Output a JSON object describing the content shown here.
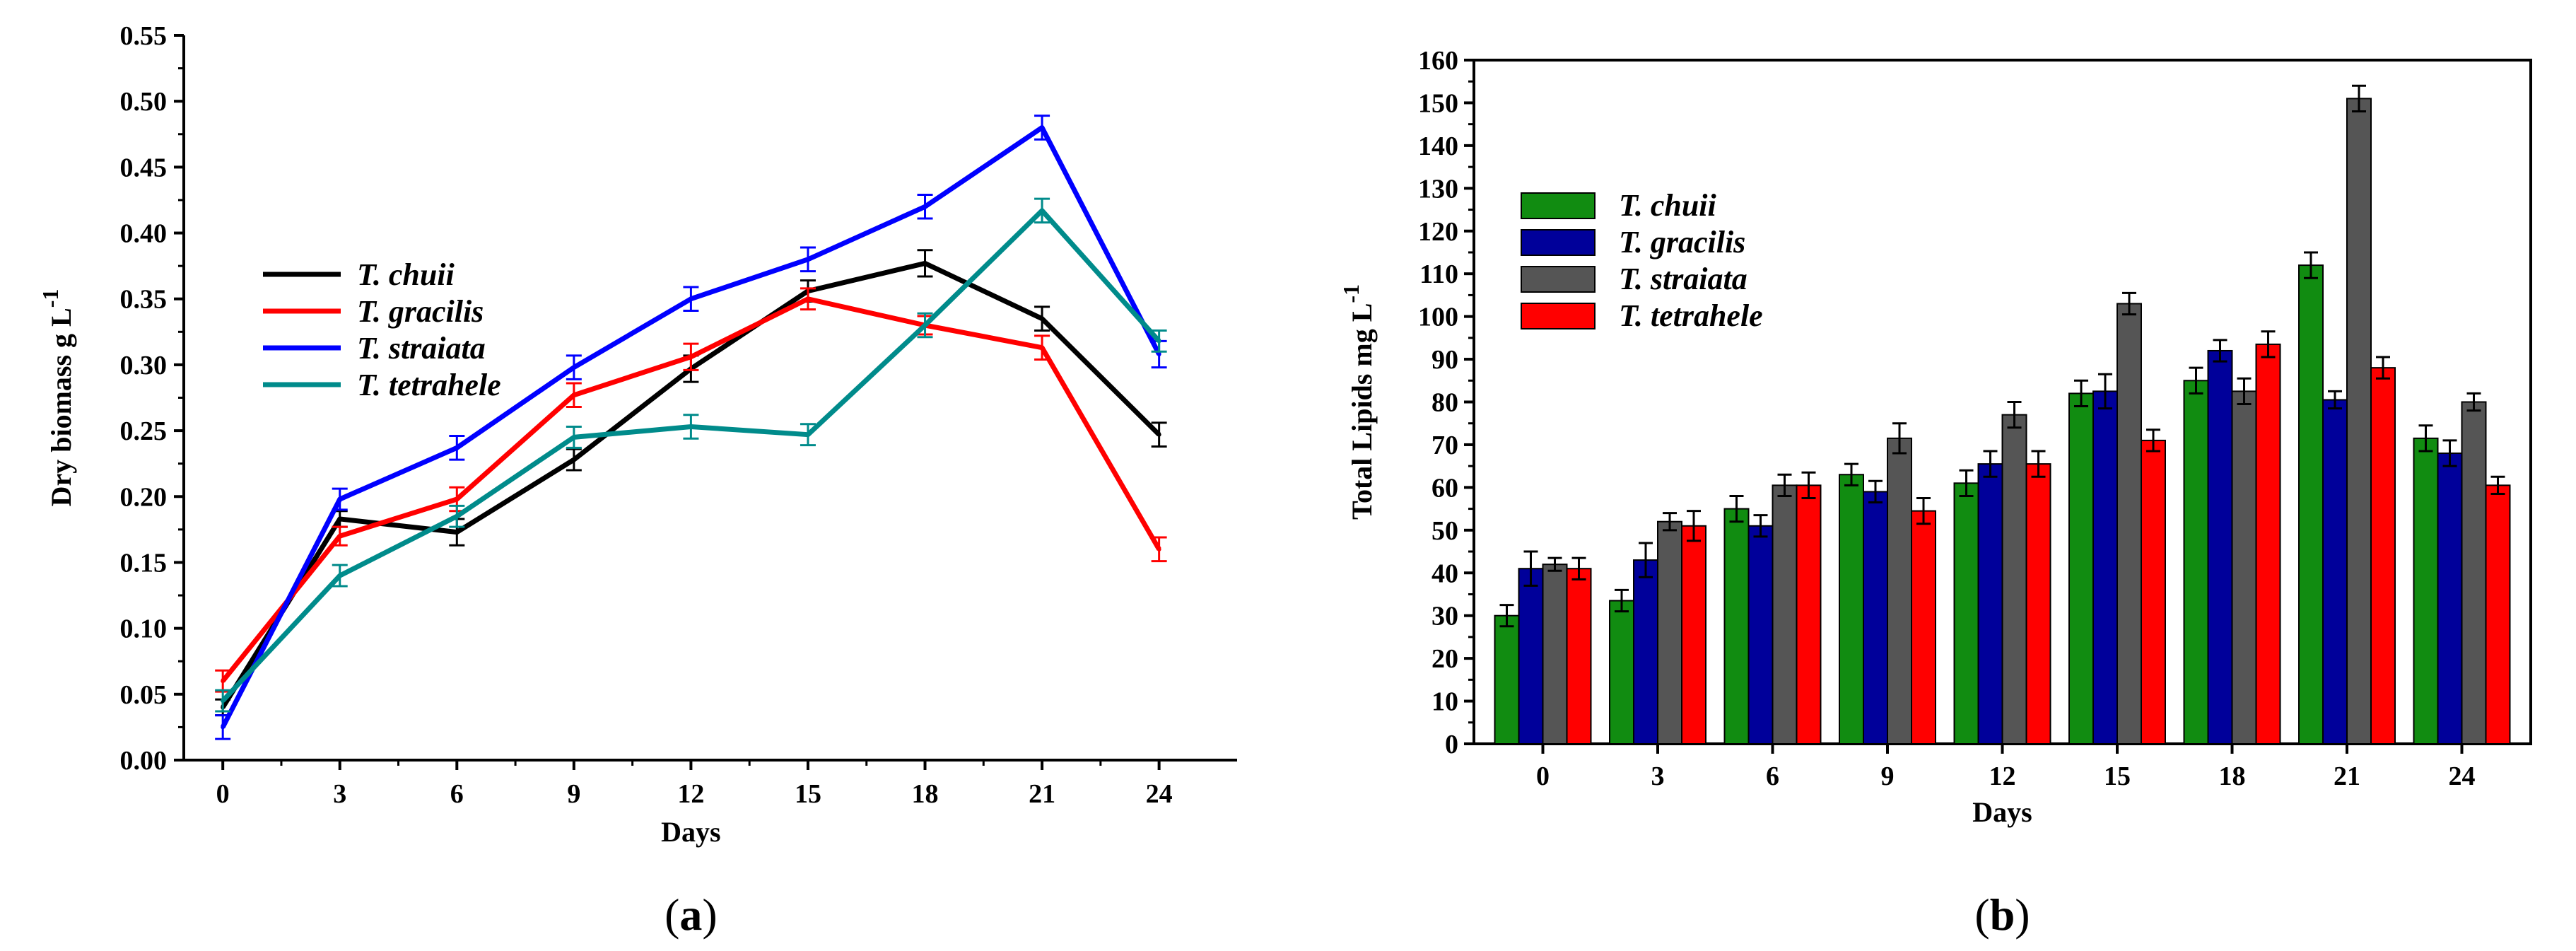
{
  "chart_data": [
    {
      "id": "a",
      "panel_label": "(a)",
      "panel_letter": "a",
      "type": "line",
      "title": "",
      "xlabel": "Days",
      "ylabel": "Dry biomass g L",
      "ylabel_sup": "-1",
      "x": [
        0,
        3,
        6,
        9,
        12,
        15,
        18,
        21,
        24
      ],
      "xlim": [
        -1,
        26
      ],
      "ylim": [
        0,
        0.55
      ],
      "xticks": [
        "0",
        "3",
        "6",
        "9",
        "12",
        "15",
        "18",
        "21",
        "24"
      ],
      "yticks": [
        "0.00",
        "0.05",
        "0.10",
        "0.15",
        "0.20",
        "0.25",
        "0.30",
        "0.35",
        "0.40",
        "0.45",
        "0.50",
        "0.55"
      ],
      "legend_position": "top-left",
      "series": [
        {
          "name": "T. chuii",
          "color": "#000000",
          "values": [
            0.04,
            0.183,
            0.173,
            0.228,
            0.297,
            0.356,
            0.377,
            0.335,
            0.247
          ],
          "errors": [
            0.006,
            0.006,
            0.01,
            0.008,
            0.01,
            0.008,
            0.01,
            0.009,
            0.009
          ]
        },
        {
          "name": "T. gracilis",
          "color": "#ff0000",
          "values": [
            0.06,
            0.17,
            0.198,
            0.277,
            0.306,
            0.35,
            0.33,
            0.313,
            0.16
          ],
          "errors": [
            0.008,
            0.007,
            0.009,
            0.009,
            0.01,
            0.008,
            0.007,
            0.009,
            0.009
          ]
        },
        {
          "name": "T. straiata",
          "color": "#0000ff",
          "values": [
            0.025,
            0.198,
            0.237,
            0.298,
            0.35,
            0.38,
            0.42,
            0.48,
            0.308
          ],
          "errors": [
            0.009,
            0.008,
            0.009,
            0.009,
            0.009,
            0.009,
            0.009,
            0.009,
            0.01
          ]
        },
        {
          "name": "T. tetrahele",
          "color": "#008b8b",
          "values": [
            0.045,
            0.14,
            0.185,
            0.245,
            0.253,
            0.247,
            0.33,
            0.417,
            0.318
          ],
          "errors": [
            0.008,
            0.008,
            0.008,
            0.008,
            0.009,
            0.008,
            0.009,
            0.009,
            0.008
          ]
        }
      ]
    },
    {
      "id": "b",
      "panel_label": "(b)",
      "panel_letter": "b",
      "type": "bar",
      "title": "",
      "xlabel": "Days",
      "ylabel": "Total Lipids mg L",
      "ylabel_sup": "-1",
      "categories": [
        "0",
        "3",
        "6",
        "9",
        "12",
        "15",
        "18",
        "21",
        "24"
      ],
      "ylim": [
        0,
        160
      ],
      "yticks": [
        "0",
        "10",
        "20",
        "30",
        "40",
        "50",
        "60",
        "70",
        "80",
        "90",
        "100",
        "110",
        "120",
        "130",
        "140",
        "150",
        "160"
      ],
      "legend_position": "top-left",
      "series": [
        {
          "name": "T. chuii",
          "color": "#118c11",
          "values": [
            30,
            33.5,
            55,
            63,
            61,
            82,
            85,
            112,
            71.5
          ],
          "errors": [
            2.5,
            2.5,
            3,
            2.5,
            3,
            3,
            3,
            3,
            3
          ]
        },
        {
          "name": "T. gracilis",
          "color": "#00009a",
          "values": [
            41,
            43,
            51,
            59,
            65.5,
            82.5,
            92,
            80.5,
            68
          ],
          "errors": [
            4,
            4,
            2.5,
            2.5,
            3,
            4,
            2.5,
            2,
            3
          ]
        },
        {
          "name": "T. straiata",
          "color": "#555555",
          "values": [
            42,
            52,
            60.5,
            71.5,
            77,
            103,
            82.5,
            151,
            80
          ],
          "errors": [
            1.5,
            2,
            2.5,
            3.5,
            3,
            2.5,
            3,
            3,
            2
          ]
        },
        {
          "name": "T. tetrahele",
          "color": "#ff0000",
          "values": [
            41,
            51,
            60.5,
            54.5,
            65.5,
            71,
            93.5,
            88,
            60.5
          ],
          "errors": [
            2.5,
            3.5,
            3,
            3,
            3,
            2.5,
            3,
            2.5,
            2
          ]
        }
      ]
    }
  ]
}
